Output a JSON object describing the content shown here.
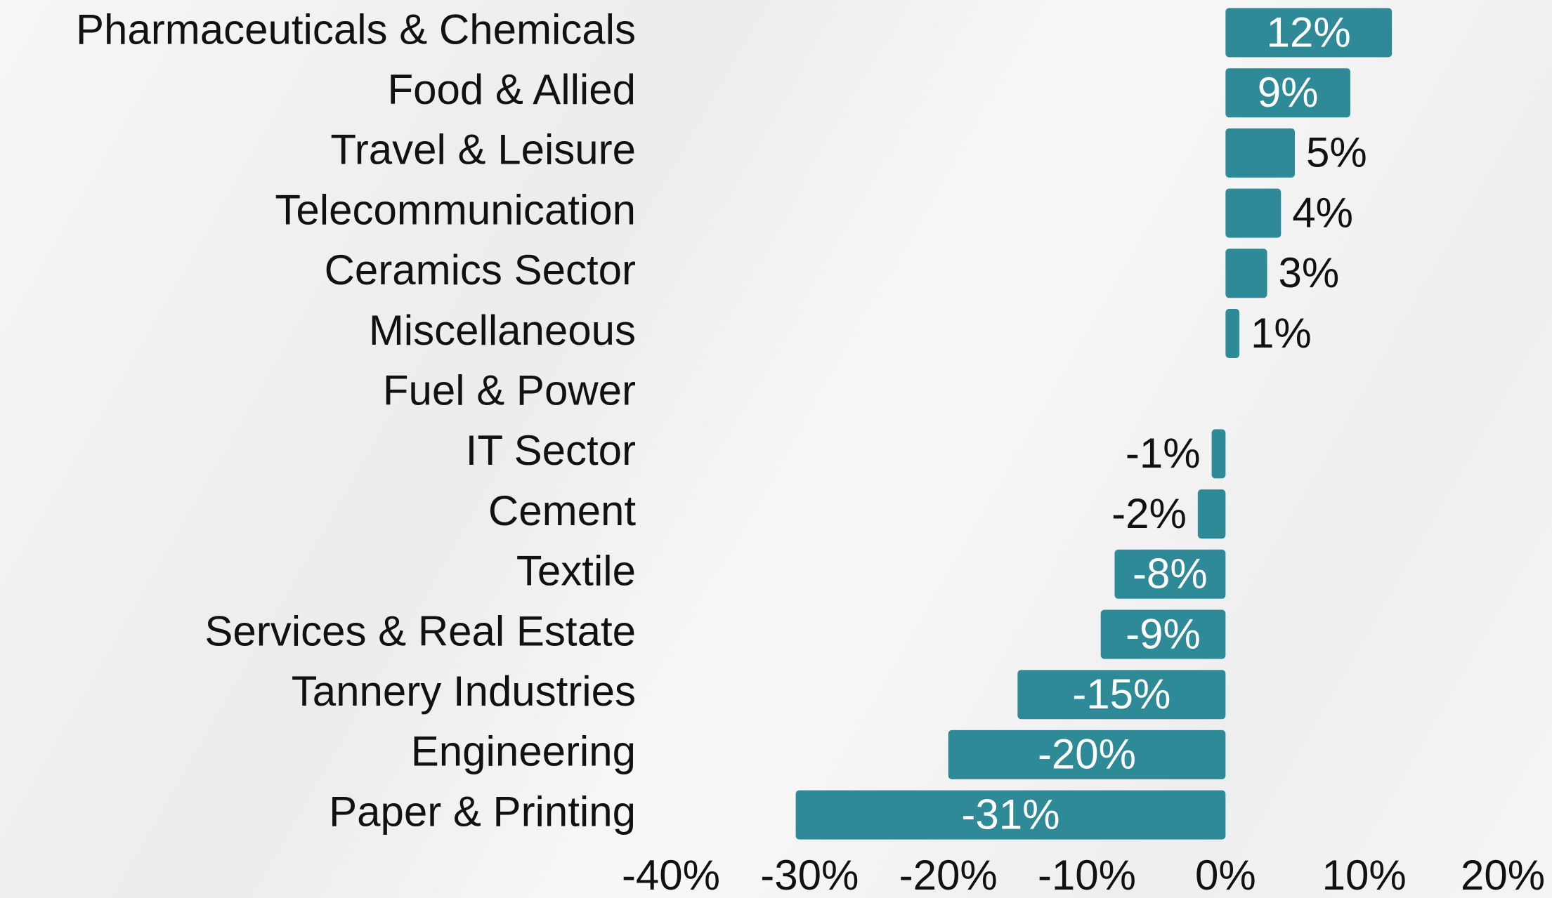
{
  "chart_data": {
    "type": "bar",
    "orientation": "horizontal",
    "categories": [
      "Pharmaceuticals & Chemicals",
      "Food & Allied",
      "Travel & Leisure",
      "Telecommunication",
      "Ceramics Sector",
      "Miscellaneous",
      "Fuel & Power",
      "IT Sector",
      "Cement",
      "Textile",
      "Services & Real Estate",
      "Tannery Industries",
      "Engineering",
      "Paper & Printing"
    ],
    "values": [
      12,
      9,
      5,
      4,
      3,
      1,
      0,
      -1,
      -2,
      -8,
      -9,
      -15,
      -20,
      -31
    ],
    "value_labels": [
      "12%",
      "9%",
      "5%",
      "4%",
      "3%",
      "1%",
      null,
      "-1%",
      "-2%",
      "-8%",
      "-9%",
      "-15%",
      "-20%",
      "-31%"
    ],
    "color": "#2f8a97",
    "xlim": [
      -40,
      20
    ],
    "xticks": [
      {
        "value": -40,
        "label": "-40%"
      },
      {
        "value": -30,
        "label": "-30%"
      },
      {
        "value": -20,
        "label": "-20%"
      },
      {
        "value": -10,
        "label": "-10%"
      },
      {
        "value": 0,
        "label": "0%"
      },
      {
        "value": 10,
        "label": "10%"
      },
      {
        "value": 20,
        "label": "20%"
      }
    ],
    "grid": false
  }
}
